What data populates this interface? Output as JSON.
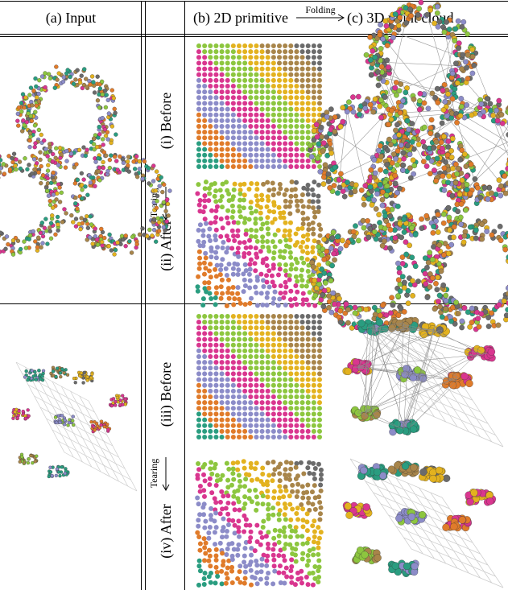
{
  "header": {
    "input": "(a) Input",
    "primitive": "(b) 2D primitive",
    "folding": "Folding",
    "output": "(c) 3D point cloud"
  },
  "rows": [
    {
      "before": "(i) Before",
      "tearing": "Tearing",
      "after": "(ii) After"
    },
    {
      "before": "(iii) Before",
      "tearing": "Tearing",
      "after": "(iv) After"
    }
  ]
}
